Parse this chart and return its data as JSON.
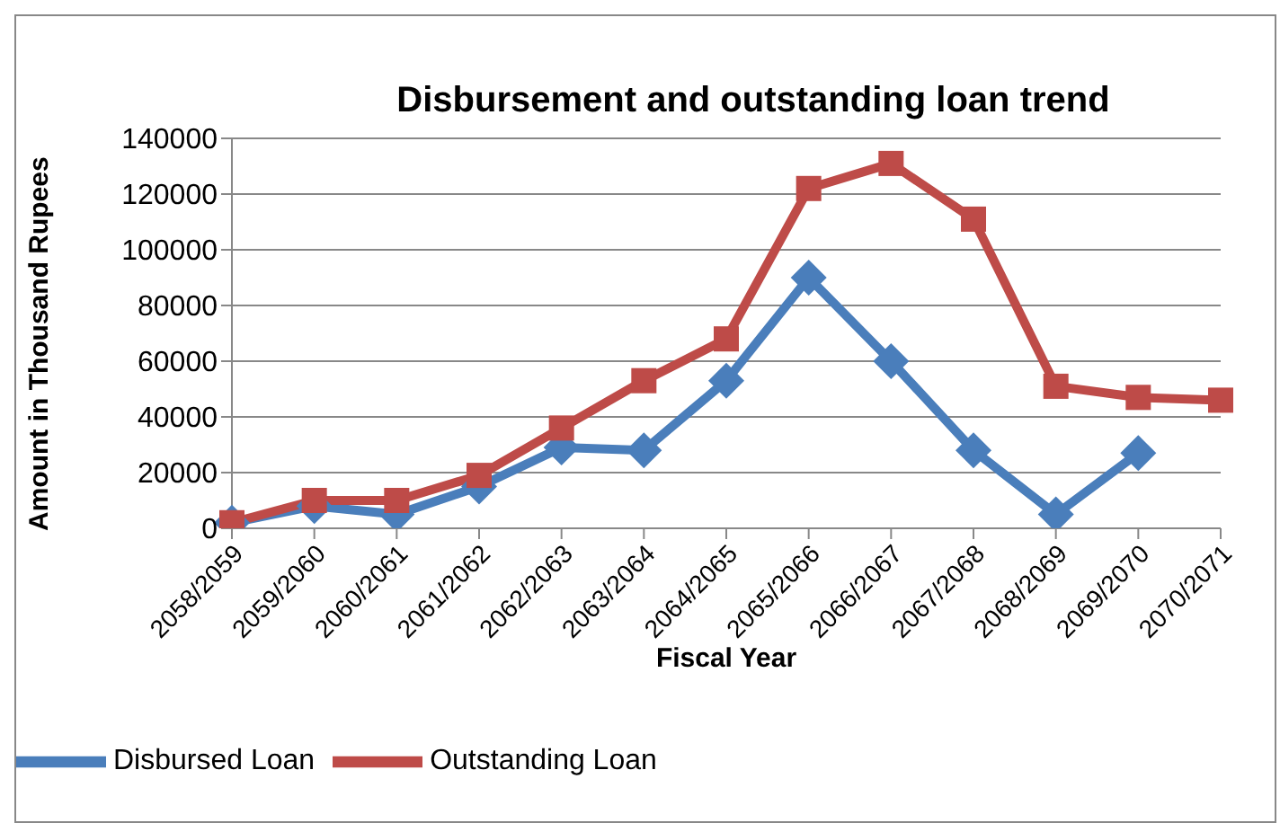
{
  "chart_data": {
    "type": "line",
    "title": "Disbursement and outstanding loan trend",
    "xlabel": "Fiscal Year",
    "ylabel": "Amount in Thousand Rupees",
    "categories": [
      "2058/2059",
      "2059/2060",
      "2060/2061",
      "2061/2062",
      "2062/2063",
      "2063/2064",
      "2064/2065",
      "2065/2066",
      "2066/2067",
      "2067/2068",
      "2068/2069",
      "2069/2070",
      "2070/2071"
    ],
    "series": [
      {
        "name": "Disbursed Loan",
        "color": "#4a7ebb",
        "marker": "diamond",
        "values": [
          2000,
          8000,
          5000,
          15000,
          29000,
          28000,
          53000,
          90000,
          60000,
          28000,
          5000,
          27000,
          null
        ]
      },
      {
        "name": "Outstanding Loan",
        "color": "#be4b48",
        "marker": "square",
        "values": [
          2000,
          10000,
          10000,
          19000,
          36000,
          53000,
          68000,
          122000,
          131000,
          111000,
          51000,
          47000,
          46000
        ]
      }
    ],
    "ylim": [
      0,
      140000
    ],
    "yticks": [
      0,
      20000,
      40000,
      60000,
      80000,
      100000,
      120000,
      140000
    ],
    "grid": "y",
    "legend": "bottom left"
  }
}
